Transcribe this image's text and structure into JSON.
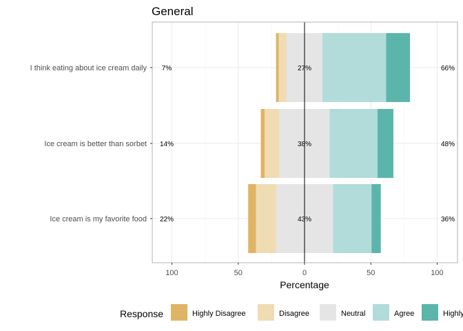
{
  "chart_data": {
    "type": "bar",
    "orientation": "horizontal",
    "stacked": "diverging",
    "title": "General",
    "xlabel": "Percentage",
    "ylabel": "",
    "xlim": [
      -100,
      100
    ],
    "x_ticks": [
      -100,
      -50,
      0,
      50,
      100
    ],
    "x_tick_labels": [
      "100",
      "50",
      "0",
      "50",
      "100"
    ],
    "grid": true,
    "legend_position": "bottom",
    "legend_title": "Response",
    "categories": [
      "I think eating about ice cream daily",
      "Ice cream is better than sorbet",
      "Ice cream is my favorite food"
    ],
    "series": [
      {
        "name": "Highly Disagree",
        "color": "#dfb465",
        "values": [
          2,
          3,
          6
        ]
      },
      {
        "name": "Disagree",
        "color": "#efdcb2",
        "values": [
          6,
          11,
          15
        ]
      },
      {
        "name": "Neutral",
        "color": "#e5e5e5",
        "values": [
          27,
          38,
          43
        ]
      },
      {
        "name": "Agree",
        "color": "#b1dcd9",
        "values": [
          48,
          36,
          29
        ]
      },
      {
        "name": "Highly Agree",
        "color": "#5cb5ab",
        "values": [
          18,
          12,
          7
        ]
      }
    ],
    "left_labels": [
      "7%",
      "14%",
      "22%"
    ],
    "center_labels": [
      "27%",
      "38%",
      "43%"
    ],
    "right_labels": [
      "66%",
      "48%",
      "36%"
    ]
  }
}
